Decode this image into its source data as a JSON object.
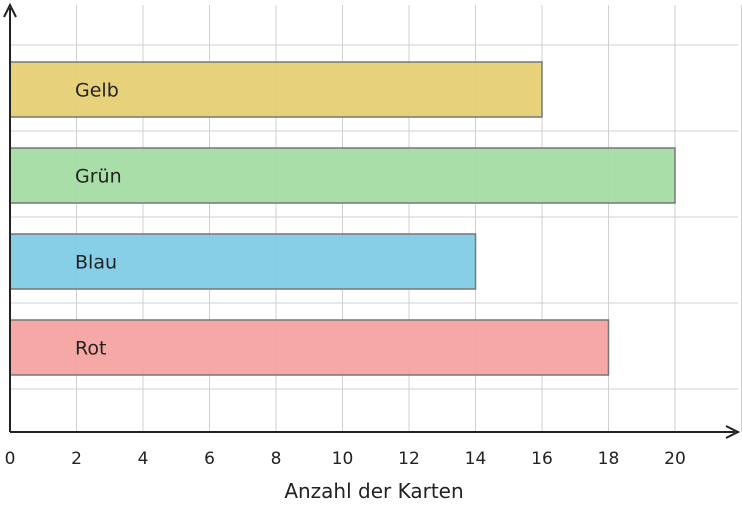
{
  "chart_data": {
    "type": "bar",
    "orientation": "horizontal",
    "categories": [
      "Gelb",
      "Grün",
      "Blau",
      "Rot"
    ],
    "values": [
      16,
      20,
      14,
      18
    ],
    "colors": [
      "#e6d074",
      "#a4dca4",
      "#80cce6",
      "#f4a3a0"
    ],
    "xlabel": "Anzahl der Karten",
    "ylabel": "",
    "xlim": [
      0,
      22
    ],
    "xticks": [
      0,
      2,
      4,
      6,
      8,
      10,
      12,
      14,
      16,
      18,
      20
    ],
    "grid": true,
    "labels_inside_bars": true
  }
}
